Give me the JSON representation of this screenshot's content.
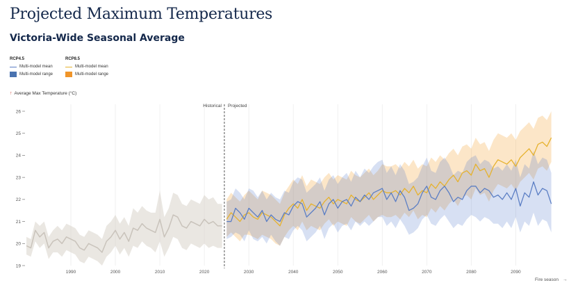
{
  "header": {
    "title": "Projected Maximum Temperatures",
    "subtitle": "Victoria-Wide Seasonal Average"
  },
  "legend": {
    "rcp45": {
      "heading": "RCP4.5",
      "mean_label": "Multi-model mean",
      "range_label": "Multi-model range"
    },
    "rcp85": {
      "heading": "RCP8.5",
      "mean_label": "Multi-model mean",
      "range_label": "Multi-model range"
    }
  },
  "colors": {
    "rcp45_line": "#5b7ec4",
    "rcp45_band": "#4a73c9",
    "rcp85_line": "#e6b22e",
    "rcp85_band": "#f3a63a",
    "historical_line": "#c9c3bb",
    "historical_band": "#d9d3cb"
  },
  "chart_data": {
    "type": "line",
    "ylabel": "Average Max Temperature (°C)",
    "xlabel": "Fire season",
    "xlim": [
      1980,
      2099
    ],
    "ylim": [
      19,
      26
    ],
    "x_ticks": [
      1990,
      2000,
      2010,
      2020,
      2030,
      2040,
      2050,
      2060,
      2070,
      2080,
      2090
    ],
    "y_ticks": [
      19,
      20,
      21,
      22,
      23,
      24,
      25,
      26
    ],
    "grid": "vertical",
    "legend_position": "top-left",
    "divider": {
      "x": 2024.5,
      "left_label": "Historical",
      "right_label": "Projected"
    },
    "series": [
      {
        "name": "Historical",
        "x": [
          1980,
          1981,
          1982,
          1983,
          1984,
          1985,
          1986,
          1987,
          1988,
          1989,
          1990,
          1991,
          1992,
          1993,
          1994,
          1995,
          1996,
          1997,
          1998,
          1999,
          2000,
          2001,
          2002,
          2003,
          2004,
          2005,
          2006,
          2007,
          2008,
          2009,
          2010,
          2011,
          2012,
          2013,
          2014,
          2015,
          2016,
          2017,
          2018,
          2019,
          2020,
          2021,
          2022,
          2023,
          2024
        ],
        "mean": [
          19.9,
          19.8,
          20.6,
          20.3,
          20.5,
          19.8,
          20.1,
          20.2,
          20.0,
          20.3,
          20.2,
          20.1,
          19.8,
          19.7,
          20.0,
          19.9,
          19.8,
          19.6,
          20.1,
          20.3,
          20.6,
          20.2,
          20.5,
          20.1,
          20.7,
          20.6,
          20.9,
          20.7,
          20.6,
          20.5,
          21.1,
          20.3,
          20.7,
          21.3,
          21.2,
          20.8,
          20.7,
          21.0,
          20.9,
          20.8,
          21.1,
          20.9,
          21.0,
          20.8,
          20.8
        ],
        "low": [
          19.5,
          19.4,
          20.1,
          19.8,
          20.0,
          19.3,
          19.6,
          19.6,
          19.4,
          19.7,
          19.6,
          19.5,
          19.2,
          19.1,
          19.4,
          19.3,
          19.2,
          19.0,
          19.4,
          19.6,
          19.9,
          19.5,
          19.8,
          19.4,
          19.9,
          19.8,
          20.1,
          19.9,
          19.8,
          19.6,
          20.1,
          19.4,
          19.8,
          20.3,
          20.2,
          19.8,
          19.7,
          20.0,
          19.9,
          19.8,
          20.0,
          19.8,
          19.9,
          19.8,
          19.8
        ],
        "high": [
          20.3,
          20.2,
          21.0,
          20.8,
          21.0,
          20.3,
          20.6,
          20.8,
          20.6,
          20.9,
          20.8,
          20.7,
          20.4,
          20.3,
          20.6,
          20.5,
          20.4,
          20.2,
          20.8,
          21.0,
          21.3,
          20.9,
          21.2,
          20.8,
          21.6,
          21.4,
          21.7,
          21.5,
          21.4,
          21.4,
          22.4,
          21.2,
          21.6,
          22.3,
          22.2,
          21.8,
          21.7,
          22.0,
          21.9,
          21.8,
          22.2,
          22.0,
          22.1,
          21.8,
          21.8
        ]
      },
      {
        "name": "RCP4.5",
        "x": [
          2025,
          2026,
          2027,
          2028,
          2029,
          2030,
          2031,
          2032,
          2033,
          2034,
          2035,
          2036,
          2037,
          2038,
          2039,
          2040,
          2041,
          2042,
          2043,
          2044,
          2045,
          2046,
          2047,
          2048,
          2049,
          2050,
          2051,
          2052,
          2053,
          2054,
          2055,
          2056,
          2057,
          2058,
          2059,
          2060,
          2061,
          2062,
          2063,
          2064,
          2065,
          2066,
          2067,
          2068,
          2069,
          2070,
          2071,
          2072,
          2073,
          2074,
          2075,
          2076,
          2077,
          2078,
          2079,
          2080,
          2081,
          2082,
          2083,
          2084,
          2085,
          2086,
          2087,
          2088,
          2089,
          2090,
          2091,
          2092,
          2093,
          2094,
          2095,
          2096,
          2097,
          2098
        ],
        "mean": [
          21.0,
          21.0,
          21.6,
          21.4,
          21.1,
          21.6,
          21.4,
          21.2,
          21.5,
          21.0,
          21.3,
          21.1,
          21.0,
          21.4,
          21.3,
          21.7,
          21.9,
          21.8,
          21.2,
          21.4,
          21.6,
          21.9,
          21.3,
          21.8,
          22.0,
          21.6,
          21.9,
          22.0,
          21.7,
          22.1,
          21.9,
          22.2,
          22.0,
          22.3,
          22.4,
          22.5,
          22.0,
          22.3,
          21.9,
          22.4,
          22.1,
          21.5,
          21.6,
          21.8,
          22.3,
          22.6,
          22.1,
          22.0,
          22.4,
          22.6,
          22.3,
          21.9,
          22.1,
          22.0,
          22.4,
          22.6,
          22.6,
          22.3,
          22.5,
          22.4,
          22.1,
          22.2,
          22.0,
          22.3,
          22.0,
          22.5,
          21.7,
          22.3,
          22.1,
          22.8,
          22.2,
          22.5,
          22.4,
          21.8
        ],
        "low": [
          20.2,
          20.3,
          20.5,
          20.4,
          20.1,
          20.6,
          20.2,
          20.1,
          20.3,
          20.0,
          20.4,
          20.1,
          19.9,
          20.3,
          20.2,
          20.6,
          20.8,
          20.6,
          20.1,
          20.3,
          20.5,
          20.8,
          20.2,
          20.7,
          20.9,
          20.5,
          20.8,
          20.9,
          20.6,
          21.0,
          20.8,
          21.0,
          20.8,
          21.0,
          21.2,
          21.2,
          20.8,
          21.0,
          20.7,
          21.1,
          20.8,
          20.4,
          20.5,
          20.7,
          21.1,
          21.3,
          20.9,
          20.8,
          21.1,
          21.3,
          21.0,
          20.7,
          20.9,
          20.8,
          21.1,
          21.3,
          21.2,
          21.0,
          21.2,
          21.1,
          20.9,
          20.9,
          20.7,
          21.0,
          20.7,
          21.2,
          20.5,
          21.0,
          20.8,
          21.4,
          20.8,
          21.1,
          21.0,
          20.5
        ],
        "high": [
          21.9,
          22.0,
          22.5,
          22.3,
          22.0,
          22.5,
          22.4,
          22.1,
          22.4,
          22.0,
          22.3,
          22.1,
          22.0,
          22.4,
          22.3,
          22.8,
          23.0,
          22.9,
          22.3,
          22.5,
          22.7,
          23.0,
          22.4,
          22.9,
          23.1,
          22.7,
          23.0,
          23.2,
          22.8,
          23.3,
          23.0,
          23.4,
          23.2,
          23.5,
          23.7,
          23.8,
          23.2,
          23.5,
          23.1,
          23.6,
          23.3,
          22.7,
          22.8,
          23.0,
          23.5,
          23.9,
          23.3,
          23.2,
          23.7,
          23.9,
          23.6,
          23.1,
          23.3,
          23.2,
          23.7,
          23.9,
          24.0,
          23.6,
          23.8,
          23.7,
          23.4,
          23.5,
          23.3,
          23.6,
          23.3,
          23.8,
          23.0,
          23.6,
          23.4,
          24.2,
          23.6,
          23.9,
          23.8,
          23.2
        ]
      },
      {
        "name": "RCP8.5",
        "x": [
          2025,
          2026,
          2027,
          2028,
          2029,
          2030,
          2031,
          2032,
          2033,
          2034,
          2035,
          2036,
          2037,
          2038,
          2039,
          2040,
          2041,
          2042,
          2043,
          2044,
          2045,
          2046,
          2047,
          2048,
          2049,
          2050,
          2051,
          2052,
          2053,
          2054,
          2055,
          2056,
          2057,
          2058,
          2059,
          2060,
          2061,
          2062,
          2063,
          2064,
          2065,
          2066,
          2067,
          2068,
          2069,
          2070,
          2071,
          2072,
          2073,
          2074,
          2075,
          2076,
          2077,
          2078,
          2079,
          2080,
          2081,
          2082,
          2083,
          2084,
          2085,
          2086,
          2087,
          2088,
          2089,
          2090,
          2091,
          2092,
          2093,
          2094,
          2095,
          2096,
          2097,
          2098
        ],
        "mean": [
          21.1,
          21.4,
          21.2,
          21.0,
          21.3,
          21.4,
          21.2,
          21.1,
          21.4,
          21.3,
          21.2,
          21.0,
          20.8,
          21.3,
          21.6,
          21.8,
          21.6,
          22.0,
          21.5,
          21.8,
          21.7,
          21.6,
          21.9,
          22.1,
          21.8,
          22.0,
          21.9,
          21.8,
          22.2,
          22.0,
          21.9,
          22.1,
          22.3,
          22.0,
          22.2,
          22.4,
          22.3,
          22.3,
          22.4,
          22.2,
          22.5,
          22.3,
          22.6,
          22.2,
          22.4,
          22.3,
          22.7,
          22.5,
          22.8,
          22.6,
          22.9,
          23.1,
          22.8,
          23.2,
          23.3,
          23.1,
          23.6,
          23.3,
          23.4,
          23.0,
          23.5,
          23.8,
          23.7,
          23.6,
          23.8,
          23.5,
          23.9,
          24.1,
          24.3,
          24.0,
          24.5,
          24.6,
          24.4,
          24.8
        ],
        "low": [
          20.3,
          20.5,
          20.3,
          20.1,
          20.4,
          20.4,
          20.3,
          20.2,
          20.4,
          20.3,
          20.2,
          20.0,
          19.9,
          20.3,
          20.6,
          20.8,
          20.6,
          21.0,
          20.6,
          20.8,
          20.7,
          20.6,
          20.9,
          21.1,
          20.8,
          21.0,
          20.9,
          20.8,
          21.2,
          21.0,
          20.9,
          21.1,
          21.3,
          21.0,
          21.2,
          21.3,
          21.2,
          21.2,
          21.3,
          21.1,
          21.4,
          21.2,
          21.5,
          21.1,
          21.3,
          21.2,
          21.6,
          21.4,
          21.7,
          21.5,
          21.8,
          22.0,
          21.7,
          22.1,
          22.2,
          22.0,
          22.5,
          22.2,
          22.3,
          21.9,
          22.4,
          22.7,
          22.6,
          22.5,
          22.7,
          22.4,
          22.8,
          23.0,
          23.2,
          22.9,
          23.4,
          23.5,
          23.3,
          23.7
        ],
        "high": [
          22.0,
          22.3,
          22.1,
          21.9,
          22.2,
          22.4,
          22.2,
          22.0,
          22.4,
          22.3,
          22.2,
          22.0,
          21.8,
          22.3,
          22.6,
          22.9,
          22.7,
          23.1,
          22.6,
          22.9,
          22.8,
          22.7,
          23.0,
          23.2,
          22.9,
          23.1,
          23.0,
          22.9,
          23.3,
          23.1,
          23.0,
          23.2,
          23.4,
          23.1,
          23.3,
          23.6,
          23.5,
          23.5,
          23.6,
          23.4,
          23.7,
          23.5,
          23.8,
          23.4,
          23.6,
          23.5,
          23.9,
          23.7,
          24.0,
          23.8,
          24.1,
          24.3,
          24.0,
          24.4,
          24.5,
          24.3,
          24.8,
          24.5,
          24.6,
          24.2,
          24.7,
          25.0,
          24.9,
          24.8,
          25.0,
          24.7,
          25.1,
          25.3,
          25.5,
          25.2,
          25.7,
          25.8,
          25.6,
          26.0
        ]
      }
    ]
  }
}
